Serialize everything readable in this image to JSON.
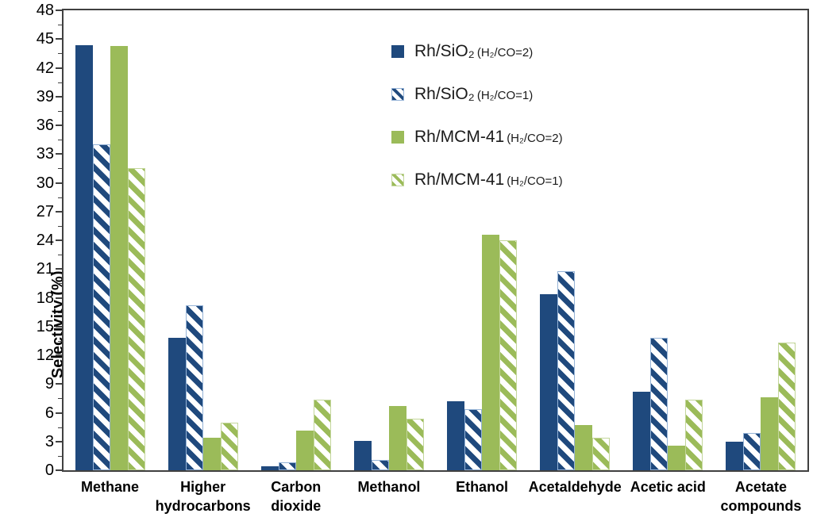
{
  "y_axis_title": "Selectivity (%)",
  "chart_data": {
    "type": "bar",
    "title": "",
    "xlabel": "",
    "ylabel": "Selectivity (%)",
    "ylim": [
      0,
      48
    ],
    "y_major_step": 3,
    "y_minor_step": 1.5,
    "y_ticks": [
      0,
      3,
      6,
      9,
      12,
      15,
      18,
      21,
      24,
      27,
      30,
      33,
      36,
      39,
      42,
      45,
      48
    ],
    "grid": false,
    "legend_position": "inside-top-center",
    "categories": [
      "Methane",
      "Higher hydrocarbons",
      "Carbon dioxide",
      "Methanol",
      "Ethanol",
      "Acetaldehyde",
      "Acetic acid",
      "Acetate compounds"
    ],
    "category_labels": [
      "Methane",
      "Higher\nhydrocarbons",
      "Carbon\ndioxide",
      "Methanol",
      "Ethanol",
      "Acetaldehyde",
      "Acetic acid",
      "Acetate\ncompounds"
    ],
    "series": [
      {
        "name": "Rh/SiO₂ (H₂/CO=2)",
        "legend_main": "Rh/SiO₂",
        "legend_cond": "(H₂/CO=2)",
        "color": "#1F497D",
        "pattern": "solid",
        "values": [
          44.4,
          13.8,
          0.4,
          3.1,
          7.2,
          18.4,
          8.2,
          3.0
        ]
      },
      {
        "name": "Rh/SiO₂ (H₂/CO=1)",
        "legend_main": "Rh/SiO₂",
        "legend_cond": "(H₂/CO=1)",
        "color": "#1F497D",
        "border_color": "#95B3D7",
        "pattern": "hatch",
        "values": [
          34.0,
          17.2,
          0.8,
          1.1,
          6.4,
          20.8,
          13.8,
          3.9
        ]
      },
      {
        "name": "Rh/MCM-41 (H₂/CO=2)",
        "legend_main": "Rh/MCM-41",
        "legend_cond": "(H₂/CO=2)",
        "color": "#9BBB59",
        "pattern": "solid",
        "values": [
          44.3,
          3.4,
          4.1,
          6.7,
          24.6,
          4.7,
          2.6,
          7.6
        ]
      },
      {
        "name": "Rh/MCM-41 (H₂/CO=1)",
        "legend_main": "Rh/MCM-41",
        "legend_cond": "(H₂/CO=1)",
        "color": "#9BBB59",
        "border_color": "#C3D69B",
        "pattern": "hatch",
        "values": [
          31.5,
          5.0,
          7.4,
          5.4,
          24.0,
          3.4,
          7.4,
          13.3
        ]
      }
    ],
    "axis_color": "#404040",
    "text_color": "#000000"
  }
}
